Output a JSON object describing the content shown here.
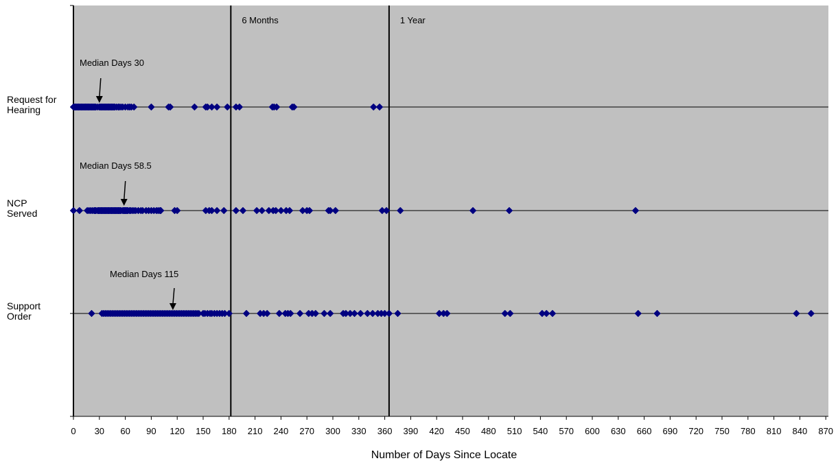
{
  "chart_data": {
    "type": "scatter",
    "xlabel": "Number of Days Since Locate",
    "xlim": [
      0,
      880
    ],
    "x_ticks": [
      0,
      30,
      60,
      90,
      120,
      150,
      180,
      210,
      240,
      270,
      300,
      330,
      360,
      390,
      420,
      450,
      480,
      510,
      540,
      570,
      600,
      630,
      660,
      690,
      720,
      750,
      780,
      810,
      840,
      870
    ],
    "grid": false,
    "reference_lines": [
      {
        "x": 182,
        "label": "6 Months"
      },
      {
        "x": 365,
        "label": "1 Year"
      }
    ],
    "colors": {
      "plot_background": "#c0c0c0",
      "marker": "#000080"
    },
    "series": [
      {
        "name": "Request for Hearing",
        "label_lines": [
          "Request for",
          "Hearing"
        ],
        "median": {
          "label": "Median Days 30",
          "value": 30
        },
        "x": [
          0,
          1,
          2,
          3,
          4,
          5,
          6,
          7,
          8,
          9,
          10,
          11,
          12,
          13,
          14,
          15,
          16,
          17,
          18,
          19,
          20,
          21,
          22,
          23,
          24,
          25,
          26,
          28,
          30,
          31,
          32,
          33,
          34,
          35,
          36,
          37,
          38,
          39,
          40,
          41,
          42,
          43,
          44,
          45,
          46,
          47,
          48,
          50,
          52,
          53,
          55,
          57,
          60,
          63,
          65,
          67,
          70,
          90,
          110,
          112,
          140,
          153,
          155,
          160,
          166,
          178,
          188,
          192,
          230,
          232,
          235,
          253,
          255,
          347,
          354
        ]
      },
      {
        "name": "NCP Served",
        "label_lines": [
          "NCP",
          "Served"
        ],
        "median": {
          "label": "Median Days 58.5",
          "value": 58.5
        },
        "x": [
          0,
          7,
          16,
          18,
          20,
          22,
          24,
          25,
          26,
          28,
          29,
          30,
          31,
          32,
          33,
          34,
          35,
          36,
          37,
          38,
          39,
          40,
          41,
          42,
          43,
          44,
          45,
          46,
          47,
          48,
          49,
          50,
          51,
          52,
          53,
          54,
          55,
          57,
          58,
          59,
          60,
          61,
          62,
          63,
          65,
          66,
          68,
          70,
          72,
          75,
          78,
          80,
          84,
          87,
          90,
          93,
          96,
          98,
          100,
          101,
          117,
          120,
          153,
          157,
          160,
          166,
          174,
          188,
          196,
          212,
          218,
          226,
          231,
          234,
          240,
          246,
          250,
          265,
          270,
          273,
          295,
          297,
          303,
          357,
          362,
          378,
          462,
          504,
          650
        ]
      },
      {
        "name": "Support Order",
        "label_lines": [
          "Support",
          "Order"
        ],
        "median": {
          "label": "Median Days 115",
          "value": 115
        },
        "x": [
          21,
          33,
          35,
          37,
          39,
          41,
          43,
          45,
          47,
          49,
          51,
          53,
          55,
          57,
          59,
          61,
          63,
          65,
          67,
          69,
          71,
          73,
          75,
          77,
          79,
          81,
          83,
          85,
          87,
          89,
          91,
          93,
          95,
          97,
          99,
          101,
          103,
          105,
          107,
          109,
          111,
          113,
          115,
          117,
          119,
          121,
          123,
          125,
          127,
          129,
          131,
          133,
          135,
          137,
          139,
          141,
          143,
          145,
          150,
          152,
          155,
          158,
          160,
          163,
          166,
          169,
          172,
          175,
          180,
          200,
          216,
          220,
          224,
          238,
          245,
          248,
          251,
          262,
          272,
          276,
          280,
          290,
          297,
          312,
          315,
          320,
          325,
          332,
          340,
          346,
          352,
          356,
          360,
          365,
          375,
          423,
          428,
          432,
          499,
          505,
          542,
          547,
          554,
          653,
          675,
          836,
          853
        ]
      }
    ]
  }
}
